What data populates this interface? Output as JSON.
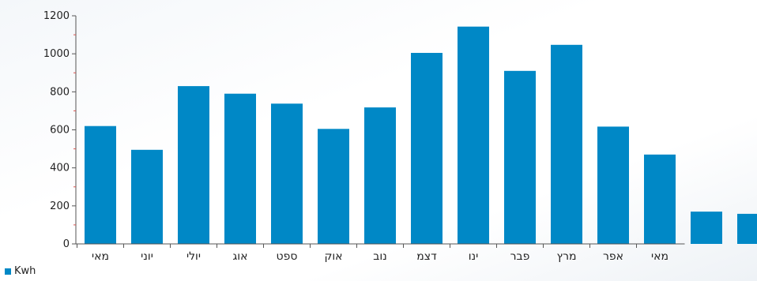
{
  "chart_data": {
    "type": "bar",
    "categories": [
      "מאי",
      "יוני",
      "יולי",
      "אוג",
      "ספט",
      "אוק",
      "נוב",
      "דצמ",
      "ינו",
      "פבר",
      "מרץ",
      "אפר",
      "מאי",
      "",
      ""
    ],
    "series": [
      {
        "name": "Kwh",
        "color": "#0088c6",
        "values": [
          620,
          495,
          830,
          790,
          738,
          605,
          718,
          1005,
          1143,
          910,
          1047,
          617,
          470,
          170,
          158
        ]
      }
    ],
    "ylim": [
      0,
      1200
    ],
    "yticks": [
      0,
      200,
      400,
      600,
      800,
      1000,
      1200
    ],
    "grid": false,
    "legend_position": "bottom-left",
    "axis_color": "#555555",
    "minor_tick_color": "#d9534f"
  }
}
